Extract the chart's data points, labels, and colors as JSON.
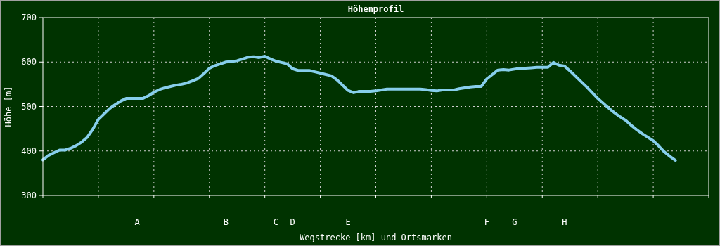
{
  "chart_data": {
    "type": "line",
    "title": "Höhenprofil",
    "xlabel": "Wegstrecke [km] und Ortsmarken",
    "ylabel": "Höhe [m]",
    "categories": [
      null,
      null,
      null,
      null,
      null,
      null,
      null,
      null,
      null,
      null,
      null,
      null,
      null,
      null,
      null,
      null,
      null,
      "A",
      null,
      null,
      null,
      null,
      null,
      null,
      null,
      null,
      null,
      null,
      null,
      null,
      null,
      null,
      null,
      "B",
      null,
      null,
      null,
      null,
      null,
      null,
      null,
      null,
      "C",
      null,
      null,
      "D",
      null,
      null,
      null,
      null,
      null,
      null,
      null,
      null,
      null,
      "E",
      null,
      null,
      null,
      null,
      null,
      null,
      null,
      null,
      null,
      null,
      null,
      null,
      null,
      null,
      null,
      null,
      null,
      null,
      null,
      null,
      null,
      null,
      null,
      null,
      "F",
      null,
      null,
      null,
      null,
      "G",
      null,
      null,
      null,
      null,
      null,
      null,
      null,
      null,
      "H",
      null,
      null,
      null,
      null,
      null,
      null,
      null,
      null,
      null,
      null,
      null,
      null,
      null,
      null,
      null,
      null,
      null,
      null,
      null,
      null,
      null,
      null,
      null,
      null,
      null,
      null
    ],
    "ylim": [
      300,
      700
    ],
    "yticks": [
      300,
      400,
      500,
      600,
      700
    ],
    "grid": true,
    "series": [
      {
        "color": "#87ceeb",
        "values": [
          380,
          390,
          396,
          402,
          402,
          406,
          412,
          420,
          431,
          449,
          471,
          483,
          495,
          504,
          512,
          518,
          518,
          518,
          518,
          524,
          532,
          538,
          542,
          545,
          548,
          550,
          553,
          558,
          563,
          574,
          586,
          592,
          596,
          600,
          601,
          603,
          607,
          611,
          612,
          610,
          613,
          607,
          602,
          599,
          596,
          585,
          581,
          581,
          581,
          578,
          575,
          572,
          569,
          560,
          548,
          536,
          531,
          534,
          534,
          534,
          535,
          537,
          539,
          539,
          539,
          539,
          539,
          539,
          539,
          538,
          536,
          535,
          537,
          537,
          537,
          540,
          542,
          544,
          545,
          545,
          562,
          572,
          582,
          583,
          582,
          584,
          586,
          586,
          587,
          588,
          588,
          588,
          599,
          593,
          591,
          580,
          568,
          556,
          544,
          531,
          518,
          507,
          496,
          486,
          477,
          469,
          458,
          448,
          439,
          431,
          423,
          411,
          398,
          388,
          379,
          null,
          null,
          null,
          null,
          null,
          null
        ]
      }
    ]
  }
}
